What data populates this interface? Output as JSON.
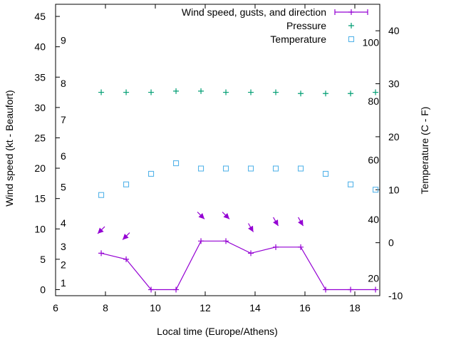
{
  "chart_data": {
    "type": "line",
    "xlabel": "Local time (Europe/Athens)",
    "ylabel": "Wind speed (kt - Beaufort)",
    "y2label": "Temperature (C - F)",
    "xlim": [
      6,
      19
    ],
    "ylim": [
      -1,
      47
    ],
    "y2lim": [
      -10,
      45
    ],
    "x_ticks": [
      6,
      8,
      10,
      12,
      14,
      16,
      18
    ],
    "y_ticks": [
      0,
      5,
      10,
      15,
      20,
      25,
      30,
      35,
      40,
      45
    ],
    "y2_ticks": [
      -10,
      0,
      10,
      20,
      30,
      40
    ],
    "grid": false,
    "legend_position": "top-right",
    "beaufort_labels": [
      {
        "label": "1",
        "y": 1.1
      },
      {
        "label": "2",
        "y": 4.1
      },
      {
        "label": "3",
        "y": 7.1
      },
      {
        "label": "4",
        "y": 11.0
      },
      {
        "label": "5",
        "y": 16.9
      },
      {
        "label": "6",
        "y": 22.0
      },
      {
        "label": "7",
        "y": 28.0
      },
      {
        "label": "8",
        "y": 34.0
      },
      {
        "label": "9",
        "y": 41.1
      }
    ],
    "fahrenheit_labels": [
      {
        "label": "20",
        "t": -6.7
      },
      {
        "label": "40",
        "t": 4.4
      },
      {
        "label": "60",
        "t": 15.6
      },
      {
        "label": "80",
        "t": 26.7
      },
      {
        "label": "100",
        "t": 37.8
      }
    ],
    "series": [
      {
        "name": "Wind speed, gusts, and direction",
        "color": "#9400d3",
        "axis": "y",
        "x": [
          7.83,
          8.83,
          9.83,
          10.83,
          11.83,
          12.83,
          13.83,
          14.83,
          15.83,
          16.83,
          17.83,
          18.83
        ],
        "values": [
          6,
          5,
          0,
          0,
          8,
          8,
          6,
          7,
          7,
          0,
          0,
          0
        ]
      },
      {
        "name": "Pressure",
        "color": "#009e73",
        "axis": "y",
        "x": [
          7.83,
          8.83,
          9.83,
          10.83,
          11.83,
          12.83,
          13.83,
          14.83,
          15.83,
          16.83,
          17.83,
          18.83
        ],
        "values": [
          32.5,
          32.5,
          32.5,
          32.7,
          32.7,
          32.5,
          32.5,
          32.5,
          32.3,
          32.3,
          32.3,
          32.5
        ]
      },
      {
        "name": "Temperature",
        "color": "#56b4e9",
        "axis": "y2",
        "x": [
          7.83,
          8.83,
          9.83,
          10.83,
          11.83,
          12.83,
          13.83,
          14.83,
          15.83,
          16.83,
          17.83,
          18.83
        ],
        "values": [
          9,
          11,
          13,
          15,
          14,
          14,
          14,
          14,
          14,
          13,
          11,
          10
        ]
      }
    ],
    "wind_direction_arrows": [
      {
        "x": 7.83,
        "y": 9.8,
        "dir_deg": 225
      },
      {
        "x": 8.83,
        "y": 8.8,
        "dir_deg": 225
      },
      {
        "x": 11.83,
        "y": 12.2,
        "dir_deg": 315
      },
      {
        "x": 12.83,
        "y": 12.2,
        "dir_deg": 315
      },
      {
        "x": 13.83,
        "y": 10.2,
        "dir_deg": 300
      },
      {
        "x": 14.83,
        "y": 11.2,
        "dir_deg": 300
      },
      {
        "x": 15.83,
        "y": 11.2,
        "dir_deg": 300
      }
    ]
  }
}
